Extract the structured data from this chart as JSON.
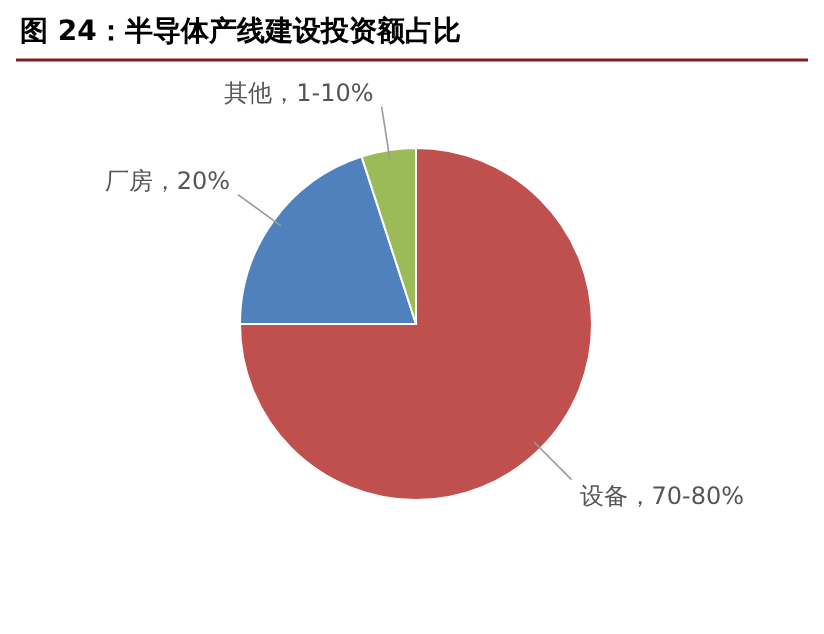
{
  "chart_data": {
    "type": "pie",
    "title": "图 24：半导体产线建设投资额占比",
    "categories": [
      "设备，70-80%",
      "厂房，20%",
      "其他，1-10%"
    ],
    "values": [
      75,
      20,
      5
    ],
    "colors": [
      "#c0504d",
      "#4f81bd",
      "#9bbb59"
    ]
  }
}
